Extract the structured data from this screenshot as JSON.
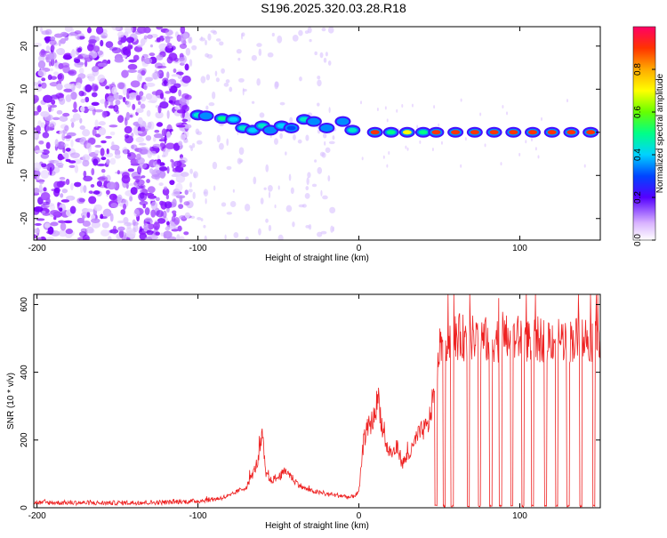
{
  "chart_data": [
    {
      "type": "heatmap",
      "title": "S196.2025.320.03.28.R18",
      "xlabel": "Height of straight line (km)",
      "ylabel": "Frequency (Hz)",
      "xlim": [
        -202,
        150
      ],
      "ylim": [
        -25,
        24.5
      ],
      "xticks": [
        -200,
        -100,
        0,
        100
      ],
      "yticks": [
        -20,
        -10,
        0,
        10,
        20
      ],
      "colorbar": {
        "label": "Normalized spectral amplitude",
        "range": [
          0,
          1
        ],
        "ticks": [
          "0.0",
          "0.2",
          "0.4",
          "0.6",
          "0.8"
        ]
      },
      "noise_region": {
        "x_range": [
          -202,
          -15
        ],
        "description_values": {
          "dense_until_km": -105
        }
      },
      "ridge": [
        {
          "x": -100,
          "f": 4.0,
          "amp": 0.45
        },
        {
          "x": -95,
          "f": 3.8,
          "amp": 0.35
        },
        {
          "x": -85,
          "f": 3.2,
          "amp": 0.5
        },
        {
          "x": -78,
          "f": 3.0,
          "amp": 0.4
        },
        {
          "x": -72,
          "f": 1.0,
          "amp": 0.45
        },
        {
          "x": -66,
          "f": 0.5,
          "amp": 0.4
        },
        {
          "x": -60,
          "f": 1.5,
          "amp": 0.45
        },
        {
          "x": -55,
          "f": 0.5,
          "amp": 0.35
        },
        {
          "x": -48,
          "f": 1.5,
          "amp": 0.4
        },
        {
          "x": -42,
          "f": 1.0,
          "amp": 0.3
        },
        {
          "x": -34,
          "f": 3.0,
          "amp": 0.45
        },
        {
          "x": -28,
          "f": 2.5,
          "amp": 0.35
        },
        {
          "x": -20,
          "f": 1.0,
          "amp": 0.35
        },
        {
          "x": -10,
          "f": 2.5,
          "amp": 0.35
        },
        {
          "x": -4,
          "f": 0.5,
          "amp": 0.45
        },
        {
          "x": 10,
          "f": 0.0,
          "amp": 0.9
        },
        {
          "x": 20,
          "f": 0.0,
          "amp": 0.5
        },
        {
          "x": 30,
          "f": 0.0,
          "amp": 0.7
        },
        {
          "x": 40,
          "f": 0.0,
          "amp": 0.5
        },
        {
          "x": 48,
          "f": 0.0,
          "amp": 0.9
        },
        {
          "x": 60,
          "f": 0.0,
          "amp": 0.9
        },
        {
          "x": 72,
          "f": 0.0,
          "amp": 0.9
        },
        {
          "x": 84,
          "f": 0.0,
          "amp": 0.9
        },
        {
          "x": 96,
          "f": 0.0,
          "amp": 0.9
        },
        {
          "x": 108,
          "f": 0.0,
          "amp": 0.9
        },
        {
          "x": 120,
          "f": 0.0,
          "amp": 0.9
        },
        {
          "x": 132,
          "f": 0.0,
          "amp": 0.9
        },
        {
          "x": 144,
          "f": 0.0,
          "amp": 0.9
        }
      ]
    },
    {
      "type": "line",
      "xlabel": "Height of straight line (km)",
      "ylabel": "SNR (10 * v/v)",
      "xlim": [
        -202,
        150
      ],
      "ylim": [
        0,
        630
      ],
      "xticks": [
        -200,
        -100,
        0,
        100
      ],
      "yticks": [
        0,
        200,
        400,
        600
      ],
      "color": "#ee2222",
      "series": [
        {
          "name": "SNR",
          "x": [
            -202,
            -180,
            -160,
            -140,
            -120,
            -100,
            -90,
            -80,
            -75,
            -70,
            -65,
            -62,
            -60,
            -58,
            -55,
            -50,
            -45,
            -40,
            -35,
            -30,
            -20,
            -10,
            -5,
            0,
            3,
            6,
            9,
            12,
            15,
            18,
            21,
            24,
            27,
            30,
            33,
            36,
            40,
            43,
            46,
            50,
            60,
            70,
            80,
            90,
            100,
            110,
            120,
            130,
            140,
            150
          ],
          "values": [
            15,
            15,
            14,
            15,
            16,
            20,
            25,
            35,
            50,
            60,
            110,
            150,
            220,
            100,
            80,
            90,
            110,
            80,
            60,
            50,
            40,
            35,
            30,
            45,
            200,
            240,
            260,
            330,
            220,
            170,
            160,
            180,
            130,
            150,
            170,
            210,
            230,
            240,
            320,
            490,
            505,
            500,
            495,
            500,
            500,
            495,
            500,
            495,
            500,
            495
          ]
        }
      ],
      "dropouts_x": [
        48,
        53,
        58,
        68,
        75,
        82,
        88,
        95,
        102,
        108,
        116,
        123,
        130,
        138,
        146
      ]
    }
  ]
}
